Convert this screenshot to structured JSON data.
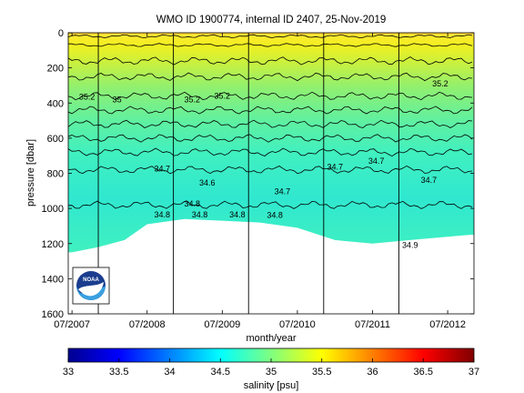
{
  "chart_data": {
    "type": "heatmap",
    "title": "WMO ID 1900774, internal ID 2407, 25-Nov-2019",
    "xlabel": "month/year",
    "ylabel": "pressure [dbar]",
    "x_tick_labels": [
      "07/2007",
      "07/2008",
      "07/2009",
      "07/2010",
      "07/2011",
      "07/2012"
    ],
    "x_tick_positions_years": [
      2007.5,
      2008.5,
      2009.5,
      2010.5,
      2011.5,
      2012.5
    ],
    "xlim_years": [
      2007.45,
      2012.85
    ],
    "y_ticks": [
      0,
      200,
      400,
      600,
      800,
      1000,
      1200,
      1400,
      1600
    ],
    "ylim": [
      0,
      1600
    ],
    "y_reversed": true,
    "colorbar": {
      "label": "salinity [psu]",
      "range": [
        33,
        37
      ],
      "tick_labels": [
        "33",
        "33.5",
        "34",
        "34.5",
        "35",
        "35.5",
        "36",
        "36.5",
        "37"
      ],
      "colormap": "jet"
    },
    "contour_labels": [
      {
        "text": "35.2",
        "x": 2007.7,
        "p": 380
      },
      {
        "text": "35",
        "x": 2008.1,
        "p": 395
      },
      {
        "text": "35.2",
        "x": 2009.1,
        "p": 395
      },
      {
        "text": "35.2",
        "x": 2009.5,
        "p": 375
      },
      {
        "text": "35.2",
        "x": 2012.4,
        "p": 305
      },
      {
        "text": "34.7",
        "x": 2008.7,
        "p": 790
      },
      {
        "text": "34.7",
        "x": 2010.3,
        "p": 920
      },
      {
        "text": "34.7",
        "x": 2011.0,
        "p": 780
      },
      {
        "text": "34.7",
        "x": 2011.55,
        "p": 745
      },
      {
        "text": "34.7",
        "x": 2012.25,
        "p": 855
      },
      {
        "text": "34.6",
        "x": 2009.3,
        "p": 870
      },
      {
        "text": "34.8",
        "x": 2008.7,
        "p": 1050
      },
      {
        "text": "34.8",
        "x": 2009.1,
        "p": 990
      },
      {
        "text": "34.8",
        "x": 2009.2,
        "p": 1050
      },
      {
        "text": "34.8",
        "x": 2009.7,
        "p": 1050
      },
      {
        "text": "34.8",
        "x": 2010.2,
        "p": 1055
      },
      {
        "text": "34.9",
        "x": 2012.0,
        "p": 1225
      }
    ],
    "profile_divider_years": [
      2007.85,
      2008.85,
      2009.85,
      2010.85,
      2011.85
    ],
    "data_bottom_pressure_approx": [
      {
        "x": 2007.5,
        "p": 1250
      },
      {
        "x": 2007.85,
        "p": 1220
      },
      {
        "x": 2008.2,
        "p": 1180
      },
      {
        "x": 2008.5,
        "p": 1090
      },
      {
        "x": 2009.0,
        "p": 1060
      },
      {
        "x": 2010.0,
        "p": 1080
      },
      {
        "x": 2010.5,
        "p": 1110
      },
      {
        "x": 2011.0,
        "p": 1180
      },
      {
        "x": 2011.5,
        "p": 1200
      },
      {
        "x": 2012.0,
        "p": 1180
      },
      {
        "x": 2012.8,
        "p": 1150
      }
    ]
  },
  "logo": {
    "name": "NOAA"
  }
}
